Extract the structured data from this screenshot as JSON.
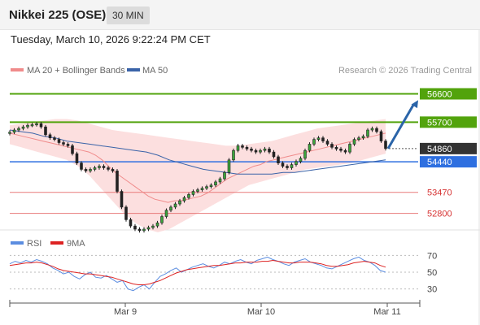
{
  "header": {
    "title": "Nikkei 225 (OSE)",
    "timeframe": "30 MIN"
  },
  "datetime": "Tuesday, March 10, 2026 9:22:24 PM CET",
  "colors": {
    "resistance": "#52a30c",
    "support": "#e87a7a",
    "current": "#333333",
    "pivot": "#2e6fe0",
    "arrow": "#2a64a8",
    "bollinger": "#fbd9d9",
    "ma20": "#f08b8b",
    "ma50": "#3a63a8",
    "rsi": "#5b8de0",
    "rsi_ma": "#dd2222"
  },
  "chart_data": [
    {
      "type": "candlestick",
      "legend": {
        "ma20": "MA 20 + Bollinger Bands",
        "ma50": "MA 50"
      },
      "watermark": "Research © 2026 Trading Central",
      "ylim": [
        52300,
        57000
      ],
      "x_ticks": [
        "Mar 9",
        "Mar 10",
        "Mar 11"
      ],
      "levels": [
        {
          "label": "56600",
          "value": 56600,
          "kind": "resistance"
        },
        {
          "label": "55700",
          "value": 55700,
          "kind": "resistance"
        },
        {
          "label": "54860",
          "value": 54860,
          "kind": "current"
        },
        {
          "label": "54440",
          "value": 54440,
          "kind": "pivot"
        },
        {
          "label": "53470",
          "value": 53470,
          "kind": "support"
        },
        {
          "label": "52800",
          "value": 52800,
          "kind": "support"
        }
      ],
      "target_value": 56400,
      "closes": [
        55380,
        55450,
        55500,
        55550,
        55600,
        55620,
        55650,
        55550,
        55300,
        55200,
        55150,
        55050,
        55000,
        54950,
        54700,
        54400,
        54200,
        54150,
        54200,
        54250,
        54300,
        54250,
        54200,
        54150,
        53500,
        53000,
        52600,
        52400,
        52300,
        52250,
        52300,
        52350,
        52400,
        52500,
        52700,
        52900,
        53000,
        53100,
        53200,
        53300,
        53400,
        53500,
        53550,
        53600,
        53650,
        53700,
        53800,
        53900,
        54100,
        54500,
        54800,
        54950,
        54900,
        54850,
        54800,
        54750,
        54800,
        54850,
        54750,
        54600,
        54400,
        54300,
        54250,
        54350,
        54450,
        54550,
        54800,
        55000,
        55150,
        55200,
        55100,
        55000,
        54900,
        54850,
        54800,
        54750,
        55000,
        55150,
        55200,
        55250,
        55450,
        55500,
        55400,
        55100,
        54860
      ],
      "ma20": [
        55350,
        55300,
        55250,
        55200,
        55150,
        55100,
        55050,
        55000,
        54950,
        54900,
        54850,
        54800,
        54750,
        54650,
        54500,
        54300,
        54100,
        53950,
        53800,
        53650,
        53500,
        53350,
        53250,
        53200,
        53150,
        53200,
        53200,
        53250,
        53300,
        53350,
        53450,
        53600,
        53750,
        53900,
        54000,
        54100,
        54200,
        54300,
        54350,
        54450,
        54500,
        54550,
        54600,
        54650,
        54700,
        54750,
        54800,
        54850,
        54900,
        54950,
        55000,
        55050,
        55100,
        55150,
        55200,
        55250,
        55300,
        55350
      ],
      "ma50": [
        55450,
        55400,
        55350,
        55250,
        55200,
        55100,
        55050,
        55000,
        54950,
        54900,
        54850,
        54800,
        54750,
        54650,
        54500,
        54400,
        54300,
        54200,
        54150,
        54100,
        54050,
        54050,
        54050,
        54050,
        54100,
        54100,
        54150,
        54200,
        54250,
        54300,
        54350,
        54400,
        54450,
        54500
      ],
      "bb_upper": [
        55600,
        55650,
        55700,
        55750,
        55800,
        55800,
        55750,
        55650,
        55550,
        55450,
        55400,
        55350,
        55300,
        55250,
        55200,
        55150,
        55100,
        55050,
        55000,
        54950,
        54950,
        55000,
        55050,
        55100,
        55200,
        55300,
        55400,
        55500,
        55550,
        55600,
        55650,
        55700,
        55750,
        55800
      ],
      "bb_lower": [
        55000,
        54900,
        54800,
        54700,
        54600,
        54500,
        54300,
        54000,
        53600,
        53200,
        52800,
        52500,
        52300,
        52200,
        52300,
        52500,
        52700,
        52900,
        53100,
        53300,
        53500,
        53700,
        53800,
        53900,
        54000,
        54100,
        54200,
        54250,
        54300,
        54350,
        54400,
        54500,
        54600,
        54700
      ]
    },
    {
      "type": "line",
      "legend": {
        "rsi": "RSI",
        "ma": "9MA"
      },
      "ylim": [
        20,
        80
      ],
      "y_ticks": [
        70,
        50,
        30
      ],
      "x_ticks": [
        "Mar 9",
        "Mar 10",
        "Mar 11"
      ],
      "series": [
        {
          "name": "RSI",
          "values": [
            60,
            63,
            61,
            64,
            62,
            65,
            63,
            60,
            55,
            52,
            48,
            50,
            45,
            42,
            47,
            50,
            44,
            43,
            46,
            42,
            38,
            40,
            30,
            28,
            32,
            35,
            30,
            38,
            45,
            48,
            52,
            55,
            50,
            53,
            56,
            58,
            60,
            57,
            55,
            58,
            62,
            60,
            63,
            65,
            62,
            60,
            64,
            66,
            68,
            65,
            63,
            60,
            58,
            62,
            64,
            66,
            62,
            60,
            58,
            55,
            54,
            57,
            60,
            63,
            66,
            68,
            64,
            62,
            58,
            52,
            50
          ]
        },
        {
          "name": "9MA",
          "values": [
            58,
            59,
            60,
            61,
            61,
            62,
            61,
            59,
            57,
            54,
            52,
            51,
            50,
            49,
            48,
            48,
            47,
            46,
            45,
            44,
            42,
            40,
            38,
            36,
            35,
            35,
            36,
            38,
            40,
            43,
            46,
            49,
            51,
            53,
            54,
            55,
            56,
            57,
            58,
            58,
            59,
            60,
            61,
            61,
            62,
            62,
            62,
            63,
            63,
            64,
            63,
            62,
            61,
            61,
            62,
            62,
            62,
            61,
            60,
            58,
            57,
            57,
            58,
            59,
            61,
            62,
            63,
            62,
            61,
            58,
            56
          ]
        }
      ]
    }
  ]
}
